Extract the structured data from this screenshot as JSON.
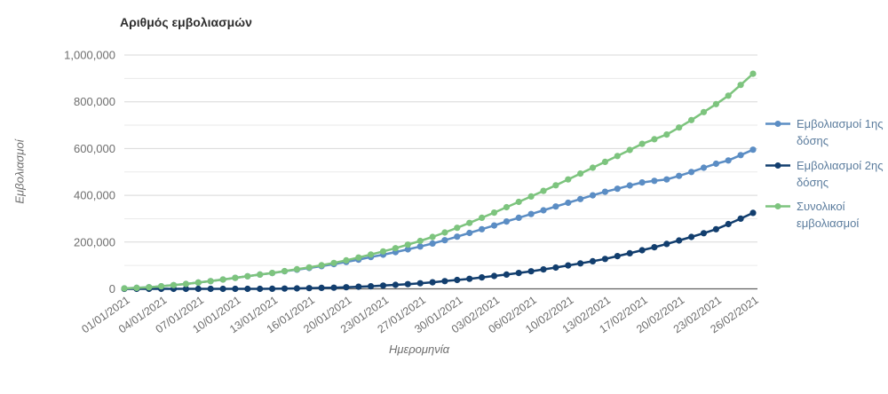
{
  "header": {
    "title": "Αριθμός εμβολιασμών"
  },
  "axes": {
    "y_title": "Εμβολιασμοί",
    "x_title": "Ημερομηνία"
  },
  "legend": {
    "position": "right",
    "items": [
      {
        "label": "Εμβολιασμοί 1ης δόσης",
        "color": "#5b8dc4"
      },
      {
        "label": "Εμβολιασμοί 2ης δόσης",
        "color": "#123e6e"
      },
      {
        "label": "Συνολικοί εμβολιασμοί",
        "color": "#7dc47e"
      }
    ]
  },
  "chart_data": {
    "type": "line",
    "title": "Αριθμός εμβολιασμών",
    "xlabel": "Ημερομηνία",
    "ylabel": "Εμβολιασμοί",
    "ylim": [
      0,
      1000000
    ],
    "y_ticks": [
      0,
      200000,
      400000,
      600000,
      800000,
      1000000
    ],
    "y_tick_labels": [
      "0",
      "200,000",
      "400,000",
      "600,000",
      "800,000",
      "1,000,000"
    ],
    "y_minor_ticks": [
      100000,
      300000,
      500000,
      700000,
      900000
    ],
    "grid": "horizontal major and minor lines, no vertical gridlines",
    "legend_position": "right",
    "marker": "filled circle on every point",
    "x": [
      "01/01/2021",
      "02/01/2021",
      "03/01/2021",
      "04/01/2021",
      "05/01/2021",
      "06/01/2021",
      "07/01/2021",
      "08/01/2021",
      "09/01/2021",
      "10/01/2021",
      "11/01/2021",
      "12/01/2021",
      "13/01/2021",
      "14/01/2021",
      "15/01/2021",
      "16/01/2021",
      "18/01/2021",
      "19/01/2021",
      "20/01/2021",
      "21/01/2021",
      "22/01/2021",
      "23/01/2021",
      "25/01/2021",
      "26/01/2021",
      "27/01/2021",
      "28/01/2021",
      "29/01/2021",
      "30/01/2021",
      "01/02/2021",
      "02/02/2021",
      "03/02/2021",
      "04/02/2021",
      "05/02/2021",
      "06/02/2021",
      "08/02/2021",
      "09/02/2021",
      "10/02/2021",
      "11/02/2021",
      "12/02/2021",
      "13/02/2021",
      "15/02/2021",
      "16/02/2021",
      "17/02/2021",
      "18/02/2021",
      "19/02/2021",
      "20/02/2021",
      "21/02/2021",
      "22/02/2021",
      "23/02/2021",
      "24/02/2021",
      "25/02/2021",
      "26/02/2021"
    ],
    "x_tick_indices": [
      0,
      3,
      6,
      9,
      12,
      15,
      18,
      21,
      24,
      27,
      30,
      33,
      36,
      39,
      42,
      45,
      48,
      51
    ],
    "x_tick_labels": [
      "01/01/2021",
      "04/01/2021",
      "07/01/2021",
      "10/01/2021",
      "13/01/2021",
      "16/01/2021",
      "20/01/2021",
      "23/01/2021",
      "27/01/2021",
      "30/01/2021",
      "03/02/2021",
      "06/02/2021",
      "10/02/2021",
      "13/02/2021",
      "17/02/2021",
      "20/02/2021",
      "23/02/2021",
      "26/02/2021"
    ],
    "series": [
      {
        "name": "Εμβολιασμοί 1ης δόσης",
        "color": "#5b8dc4",
        "values": [
          2000,
          4000,
          7000,
          11000,
          16000,
          21000,
          27000,
          33000,
          40000,
          47000,
          54000,
          61000,
          67500,
          75000,
          82000,
          89000,
          97000,
          106000,
          115000,
          125000,
          136000,
          146000,
          157000,
          169000,
          181000,
          194000,
          208000,
          223000,
          239000,
          255000,
          271000,
          288000,
          304000,
          320000,
          336000,
          352000,
          368000,
          384000,
          400000,
          415000,
          428000,
          442000,
          455000,
          462000,
          468000,
          483000,
          500000,
          518000,
          535000,
          549000,
          572000,
          595000
        ]
      },
      {
        "name": "Εμβολιασμοί 2ης δόσης",
        "color": "#123e6e",
        "values": [
          0,
          0,
          0,
          0,
          0,
          0,
          0,
          0,
          0,
          0,
          0,
          0,
          500,
          1000,
          2000,
          3000,
          4000,
          5000,
          7000,
          9000,
          11000,
          14000,
          17000,
          20000,
          24000,
          28000,
          33000,
          38000,
          43000,
          49000,
          55000,
          61000,
          68000,
          75000,
          83000,
          91000,
          100000,
          109000,
          118000,
          128000,
          140000,
          152000,
          165000,
          178000,
          192000,
          207000,
          222000,
          238000,
          255000,
          277000,
          300000,
          325000
        ]
      },
      {
        "name": "Συνολικοί εμβολιασμοί",
        "color": "#7dc47e",
        "values": [
          2000,
          4000,
          7000,
          11000,
          16000,
          21000,
          27000,
          33000,
          40000,
          47000,
          54000,
          61000,
          68000,
          76000,
          84000,
          92000,
          101000,
          111000,
          122000,
          134000,
          147000,
          160000,
          174000,
          189000,
          205000,
          222000,
          241000,
          261000,
          282000,
          304000,
          326000,
          349000,
          372000,
          395000,
          419000,
          443000,
          468000,
          493000,
          518000,
          543000,
          568000,
          594000,
          620000,
          640000,
          660000,
          690000,
          722000,
          756000,
          790000,
          826000,
          872000,
          920000
        ]
      }
    ]
  },
  "colors": {
    "background": "#ffffff",
    "title_text": "#2e2e2e",
    "axis_text": "#6e6e6e",
    "legend_text": "#5b7c9d",
    "grid_minor": "#eaeaea",
    "grid_major": "#d8d8d8",
    "axis_baseline": "#606060"
  }
}
